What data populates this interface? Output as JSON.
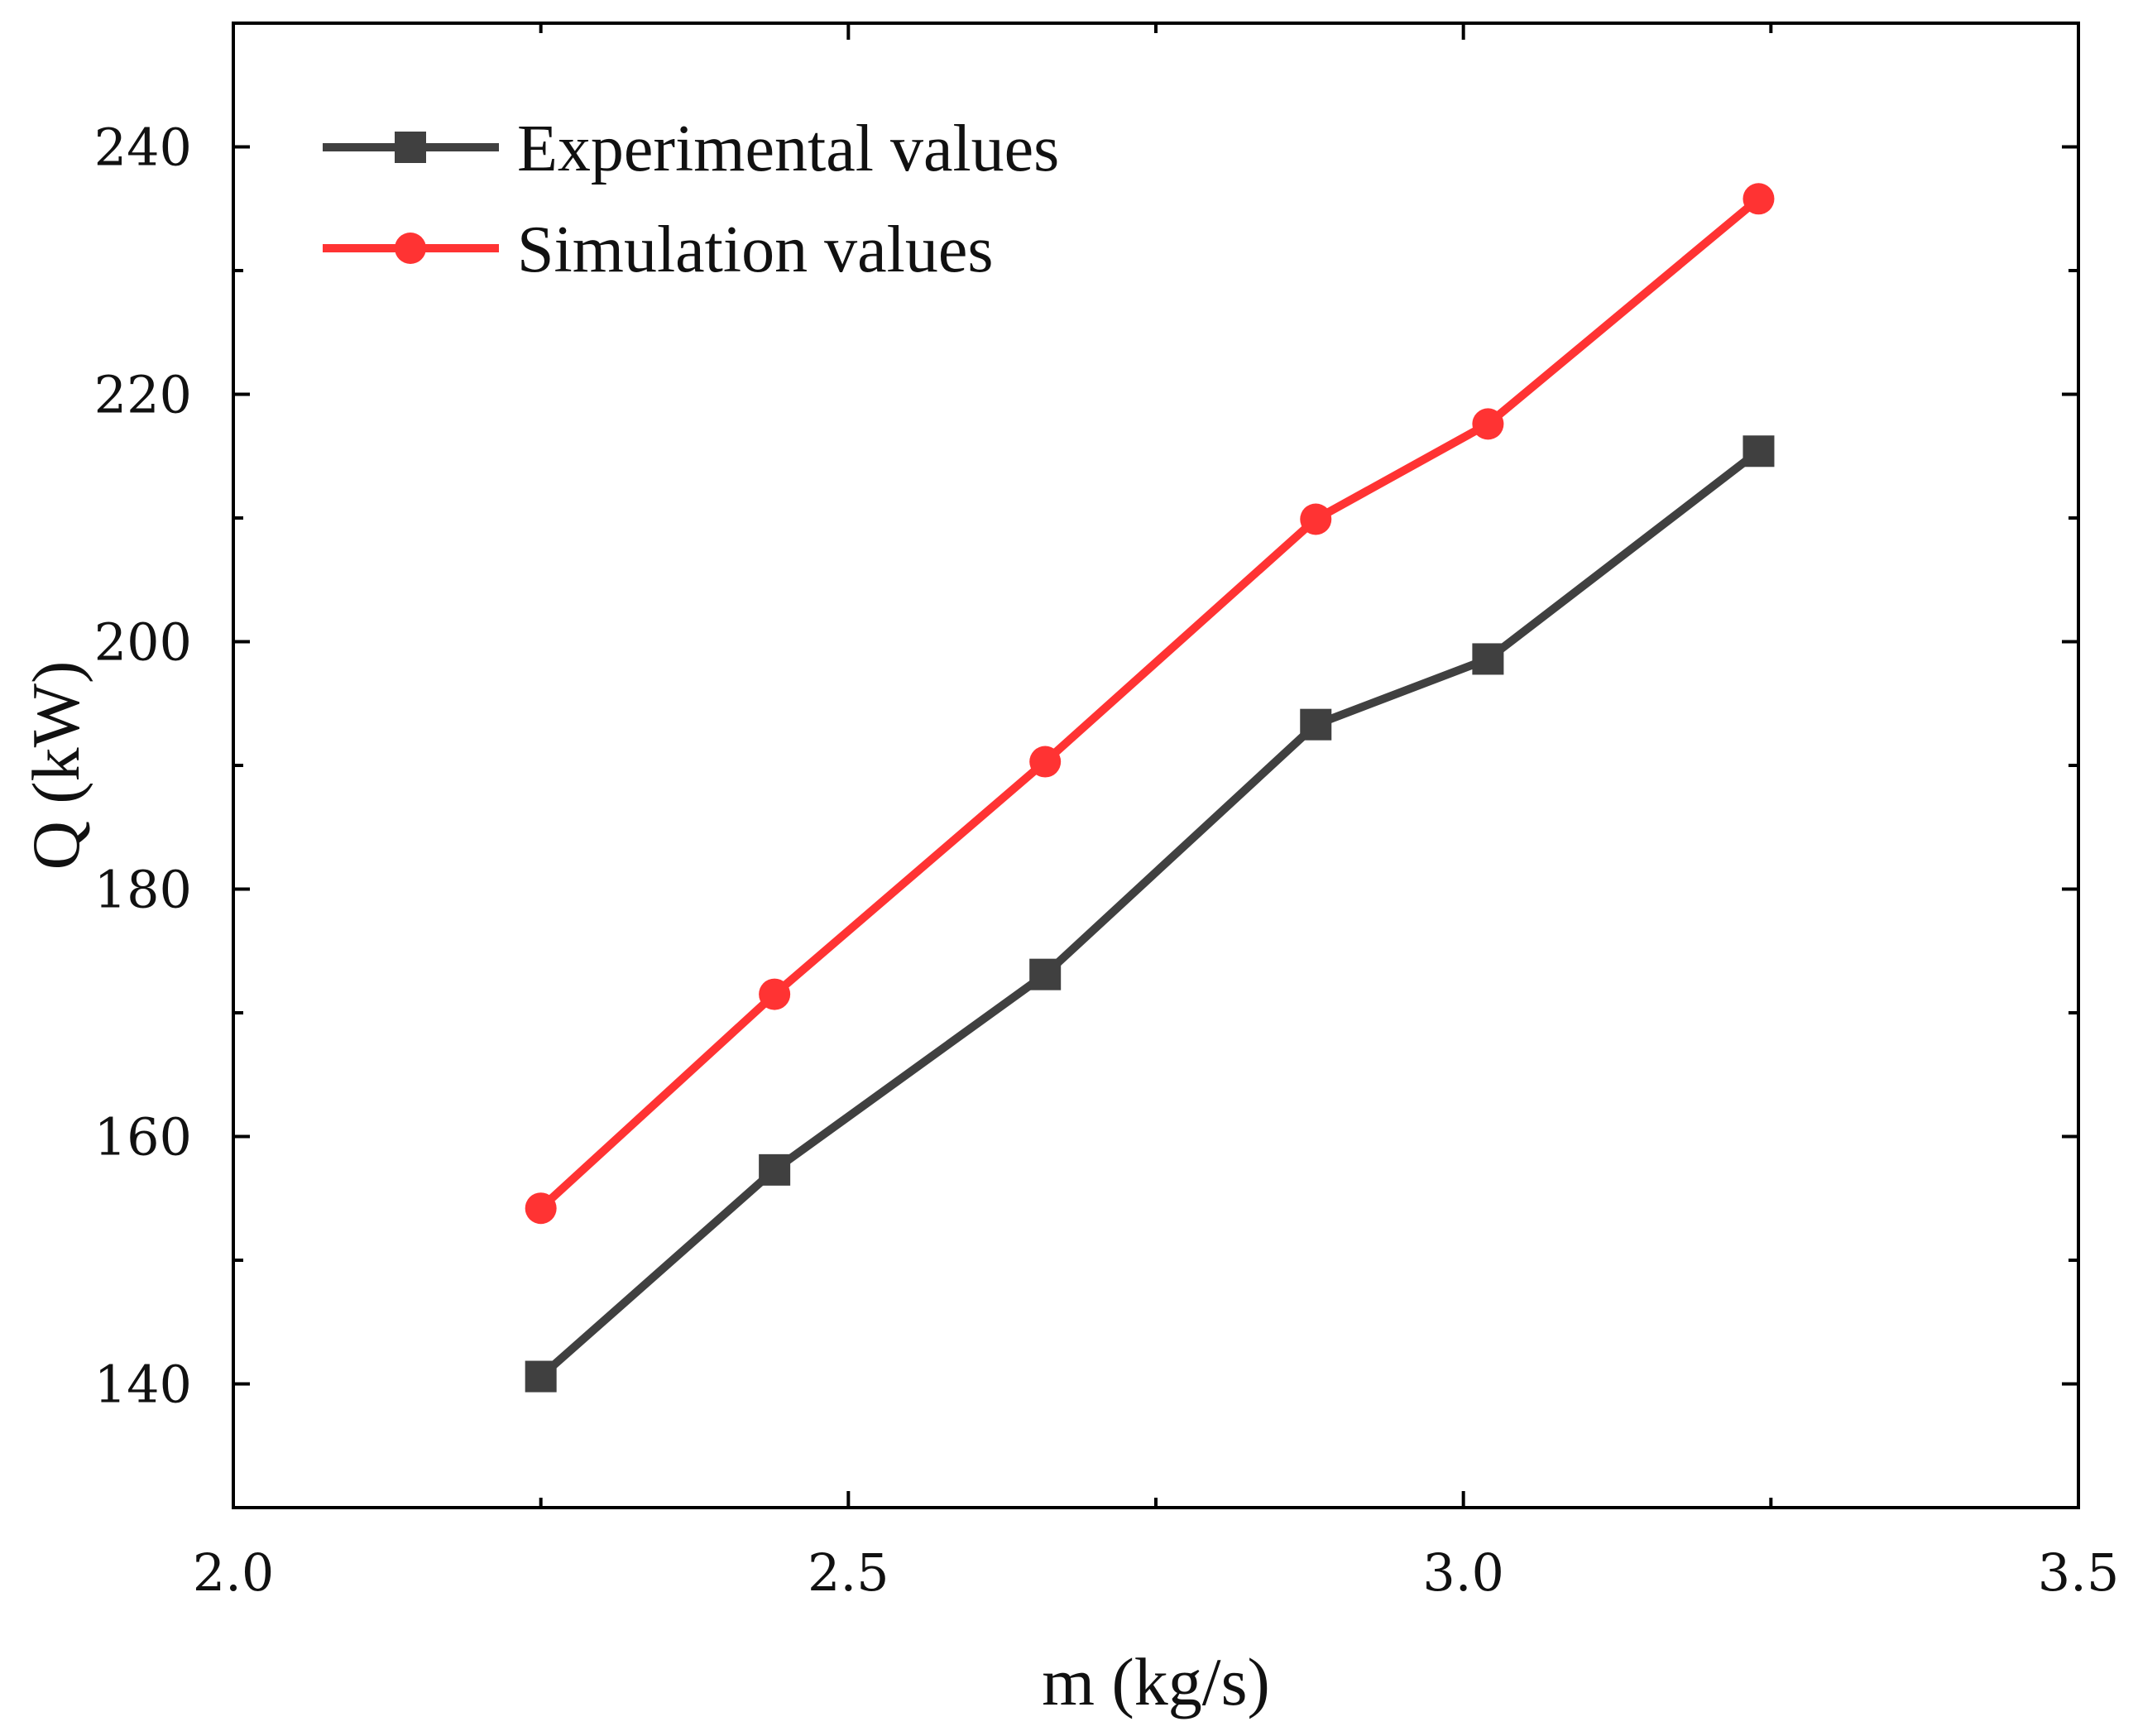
{
  "chart_data": {
    "type": "line",
    "title": "",
    "xlabel": "m (kg/s)",
    "ylabel": "Q (kW)",
    "xlim": [
      2.0,
      3.5
    ],
    "ylim": [
      130,
      250
    ],
    "x_ticks": [
      2.0,
      2.5,
      3.0,
      3.5
    ],
    "x_tick_labels": [
      "2.0",
      "2.5",
      "3.0",
      "3.5"
    ],
    "x_minor_ticks": [
      2.25,
      2.75,
      3.25
    ],
    "y_ticks": [
      140,
      160,
      180,
      200,
      220,
      240
    ],
    "y_tick_labels": [
      "140",
      "160",
      "180",
      "200",
      "220",
      "240"
    ],
    "y_minor_ticks": [
      150,
      170,
      190,
      210,
      230
    ],
    "grid": false,
    "legend_position": "top-left",
    "x": [
      2.25,
      2.44,
      2.66,
      2.88,
      3.02,
      3.24
    ],
    "series": [
      {
        "name": "Experimental values",
        "color": "#404040",
        "marker": "square",
        "values": [
          140.6,
          157.3,
          173.1,
          193.3,
          198.6,
          215.4
        ]
      },
      {
        "name": "Simulation values",
        "color": "#ff3333",
        "marker": "circle",
        "values": [
          154.2,
          171.5,
          190.3,
          209.9,
          217.6,
          235.8
        ]
      }
    ]
  }
}
